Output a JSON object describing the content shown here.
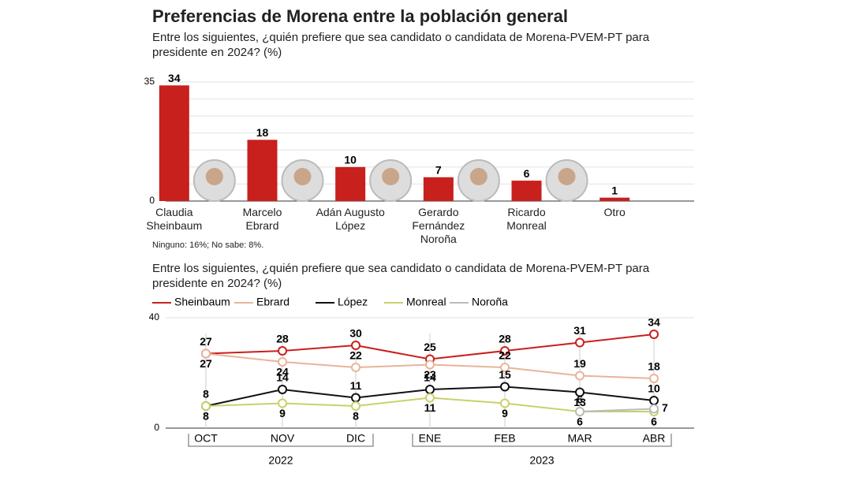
{
  "chart_data": [
    {
      "type": "bar",
      "title": "Preferencias de Morena entre la población general",
      "subtitle": "Entre los siguientes, ¿quién prefiere que sea candidato o candidata de Morena-PVEM-PT para presidente en 2024? (%)",
      "categories": [
        "Claudia Sheinbaum",
        "Marcelo Ebrard",
        "Adán Augusto López",
        "Gerardo Fernández Noroña",
        "Ricardo Monreal",
        "Otro"
      ],
      "values": [
        34,
        18,
        10,
        7,
        6,
        1
      ],
      "color": "#c8201d",
      "ylim": [
        0,
        35
      ],
      "yticks": [
        0,
        35
      ],
      "grid": true,
      "note": "Ninguno: 16%; No sabe: 8%."
    },
    {
      "type": "line",
      "subtitle": "Entre los siguientes, ¿quién prefiere que sea candidato o candidata de Morena-PVEM-PT para presidente en 2024? (%)",
      "categories": [
        "OCT",
        "NOV",
        "DIC",
        "ENE",
        "FEB",
        "MAR",
        "ABR"
      ],
      "years": [
        "2022",
        "2022",
        "2022",
        "2023",
        "2023",
        "2023",
        "2023"
      ],
      "series": [
        {
          "name": "Sheinbaum",
          "color": "#c8201d",
          "values": [
            27,
            28,
            30,
            25,
            28,
            31,
            34
          ]
        },
        {
          "name": "Ebrard",
          "color": "#e8b49a",
          "values": [
            27,
            24,
            22,
            23,
            22,
            19,
            18
          ]
        },
        {
          "name": "López",
          "color": "#111111",
          "values": [
            8,
            14,
            11,
            14,
            15,
            13,
            10
          ]
        },
        {
          "name": "Monreal",
          "color": "#c9d16a",
          "values": [
            8,
            9,
            8,
            11,
            9,
            6,
            6
          ]
        },
        {
          "name": "Noroña",
          "color": "#bbbbbb",
          "values": [
            null,
            null,
            null,
            null,
            null,
            6,
            7
          ]
        }
      ],
      "ylim": [
        0,
        40
      ],
      "yticks": [
        0,
        40
      ],
      "grid": true
    }
  ]
}
